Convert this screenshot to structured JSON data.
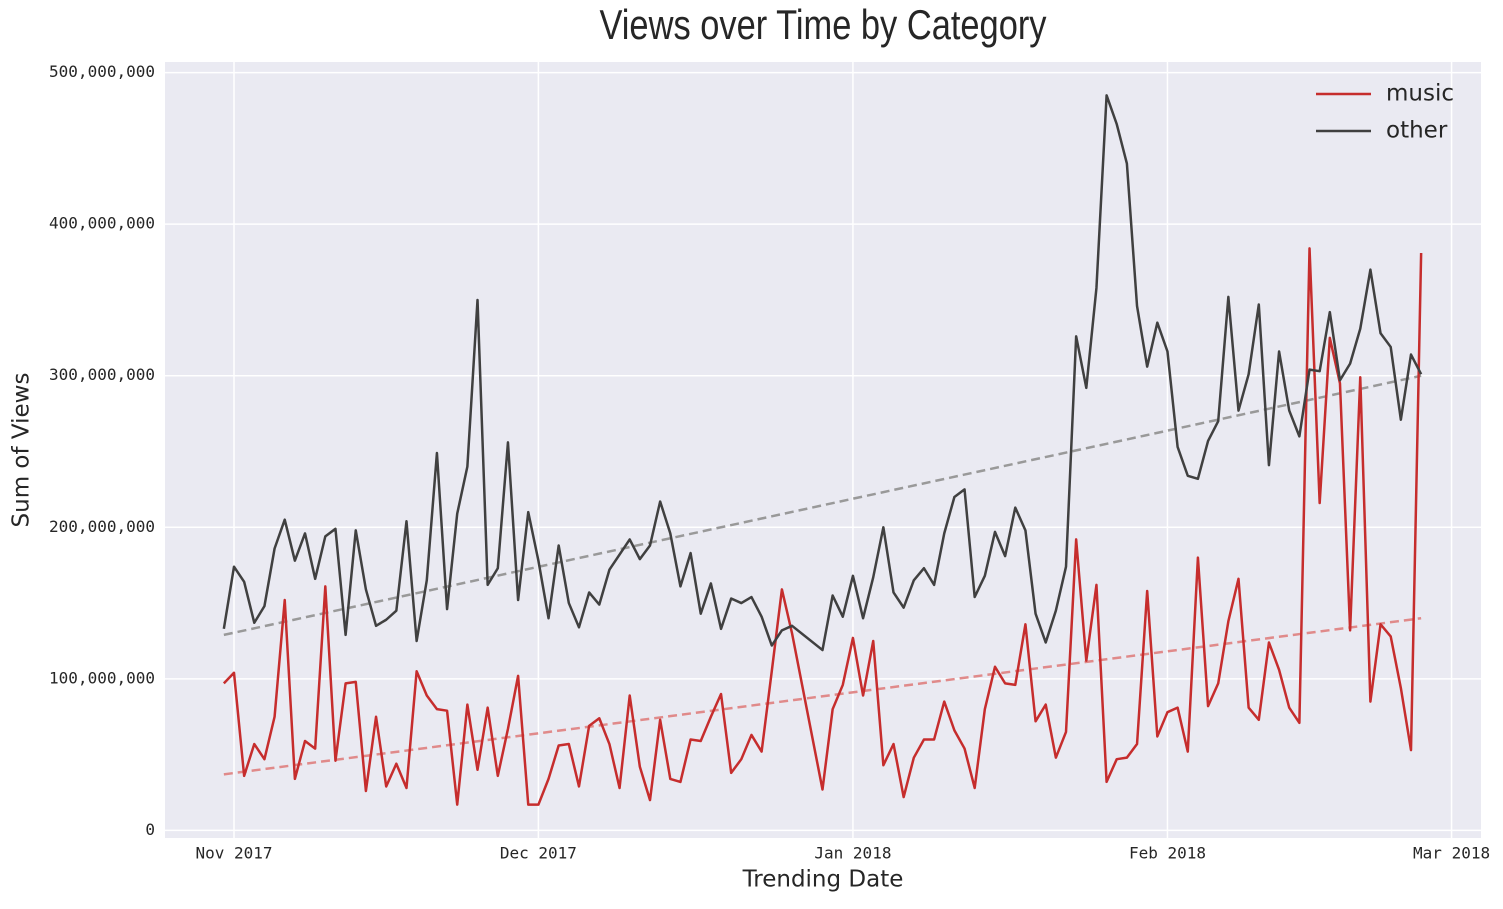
{
  "chart_data": {
    "type": "line",
    "title": "Views over Time by Category",
    "x_label": "Trending Date",
    "y_label": "Sum of Views",
    "x": [
      -1,
      0,
      1,
      2,
      3,
      4,
      5,
      6,
      7,
      8,
      9,
      10,
      11,
      12,
      13,
      14,
      15,
      16,
      17,
      18,
      19,
      20,
      21,
      22,
      23,
      24,
      25,
      26,
      27,
      28,
      29,
      30,
      31,
      32,
      33,
      34,
      35,
      36,
      37,
      38,
      39,
      40,
      41,
      42,
      43,
      44,
      45,
      46,
      47,
      48,
      49,
      50,
      51,
      52,
      53,
      54,
      55,
      58,
      59,
      60,
      61,
      62,
      63,
      64,
      65,
      66,
      67,
      68,
      69,
      70,
      71,
      72,
      73,
      74,
      75,
      76,
      77,
      78,
      79,
      80,
      81,
      82,
      83,
      84,
      85,
      86,
      87,
      88,
      89,
      90,
      91,
      92,
      93,
      94,
      95,
      96,
      97,
      98,
      99,
      100,
      101,
      102,
      103,
      104,
      105,
      106,
      107,
      108,
      109,
      110,
      111,
      112,
      113,
      114,
      115,
      116,
      117
    ],
    "xlim": [
      -6.8,
      122.9
    ],
    "xticks": [
      {
        "value": 0,
        "label": "Nov 2017"
      },
      {
        "value": 30,
        "label": "Dec 2017"
      },
      {
        "value": 61,
        "label": "Jan 2018"
      },
      {
        "value": 92,
        "label": "Feb 2018"
      },
      {
        "value": 120,
        "label": "Mar 2018"
      }
    ],
    "ylim": [
      -5000000.0,
      507000000.0
    ],
    "yticks": [
      0,
      {
        "value": 100000000,
        "label": "100,000,000"
      },
      {
        "value": 200000000,
        "label": "200,000,000"
      },
      {
        "value": 300000000,
        "label": "300,000,000"
      },
      {
        "value": 400000000,
        "label": "400,000,000"
      },
      {
        "value": 500000000,
        "label": "500,000,000"
      }
    ],
    "grid": true,
    "legend": "upper right",
    "series": [
      {
        "name": "music",
        "color": "#c62d2d",
        "values": [
          97000000.0,
          104000000.0,
          36000000.0,
          57000000.0,
          47000000.0,
          75000000.0,
          152000000.0,
          34000000.0,
          59000000.0,
          54000000.0,
          161000000.0,
          46000000.0,
          97000000.0,
          98000000.0,
          26000000.0,
          75000000.0,
          29000000.0,
          44000000.0,
          28000000.0,
          105000000.0,
          89000000.0,
          80000000.0,
          79000000.0,
          17000000.0,
          83000000.0,
          40000000.0,
          81000000.0,
          36000000.0,
          67000000.0,
          102000000.0,
          17000000.0,
          17000000.0,
          34000000.0,
          56000000.0,
          57000000.0,
          29000000.0,
          69000000.0,
          74000000.0,
          57000000.0,
          28000000.0,
          89000000.0,
          42000000.0,
          20000000.0,
          73000000.0,
          34000000.0,
          32000000.0,
          60000000.0,
          59000000.0,
          75000000.0,
          90000000.0,
          38000000.0,
          47000000.0,
          63000000.0,
          52000000.0,
          105000000.0,
          159000000.0,
          130000000.0,
          27000000.0,
          80000000.0,
          96000000.0,
          127000000.0,
          89000000.0,
          125000000.0,
          43000000.0,
          57000000.0,
          22000000.0,
          48000000.0,
          60000000.0,
          60000000.0,
          85000000.0,
          66000000.0,
          54000000.0,
          28000000.0,
          80000000.0,
          108000000.0,
          97000000.0,
          96000000.0,
          136000000.0,
          72000000.0,
          83000000.0,
          48000000.0,
          65000000.0,
          192000000.0,
          112000000.0,
          162000000.0,
          32000000.0,
          47000000.0,
          48000000.0,
          57000000.0,
          158000000.0,
          62000000.0,
          78000000.0,
          81000000.0,
          52000000.0,
          180000000.0,
          82000000.0,
          97000000.0,
          138000000.0,
          166000000.0,
          81000000.0,
          73000000.0,
          124000000.0,
          106000000.0,
          81000000.0,
          71000000.0,
          384000000.0,
          216000000.0,
          325000000.0,
          295000000.0,
          132000000.0,
          299000000.0,
          85000000.0,
          136000000.0,
          128000000.0,
          94000000.0,
          53000000.0,
          381000000.0
        ]
      },
      {
        "name": "other",
        "color": "#404040",
        "values": [
          133000000.0,
          174000000.0,
          164000000.0,
          137000000.0,
          148000000.0,
          186000000.0,
          205000000.0,
          178000000.0,
          196000000.0,
          166000000.0,
          194000000.0,
          199000000.0,
          129000000.0,
          198000000.0,
          159000000.0,
          135000000.0,
          139000000.0,
          145000000.0,
          204000000.0,
          125000000.0,
          165000000.0,
          249000000.0,
          146000000.0,
          209000000.0,
          240000000.0,
          350000000.0,
          162000000.0,
          173000000.0,
          256000000.0,
          152000000.0,
          210000000.0,
          178000000.0,
          140000000.0,
          188000000.0,
          150000000.0,
          134000000.0,
          157000000.0,
          149000000.0,
          172000000.0,
          182000000.0,
          192000000.0,
          179000000.0,
          188000000.0,
          217000000.0,
          196000000.0,
          161000000.0,
          183000000.0,
          143000000.0,
          163000000.0,
          133000000.0,
          153000000.0,
          150000000.0,
          154000000.0,
          141000000.0,
          122000000.0,
          132000000.0,
          135000000.0,
          119000000.0,
          155000000.0,
          141000000.0,
          168000000.0,
          140000000.0,
          167000000.0,
          200000000.0,
          157000000.0,
          147000000.0,
          165000000.0,
          173000000.0,
          162000000.0,
          196000000.0,
          220000000.0,
          225000000.0,
          154000000.0,
          168000000.0,
          197000000.0,
          181000000.0,
          213000000.0,
          198000000.0,
          143000000.0,
          124000000.0,
          145000000.0,
          174000000.0,
          326000000.0,
          292000000.0,
          358000000.0,
          485000000.0,
          466000000.0,
          440000000.0,
          346000000.0,
          306000000.0,
          335000000.0,
          316000000.0,
          253000000.0,
          234000000.0,
          232000000.0,
          257000000.0,
          270000000.0,
          352000000.0,
          277000000.0,
          301000000.0,
          347000000.0,
          241000000.0,
          316000000.0,
          277000000.0,
          260000000.0,
          304000000.0,
          303000000.0,
          342000000.0,
          297000000.0,
          308000000.0,
          331000000.0,
          370000000.0,
          328000000.0,
          319000000.0,
          271000000.0,
          314000000.0,
          301000000.0
        ]
      }
    ],
    "trend_lines": [
      {
        "color": "#e08a8a",
        "x": [
          -1,
          117
        ],
        "values": [
          37000000.0,
          140000000.0
        ]
      },
      {
        "color": "#999999",
        "x": [
          -1,
          117
        ],
        "values": [
          129000000.0,
          300000000.0
        ]
      }
    ]
  }
}
